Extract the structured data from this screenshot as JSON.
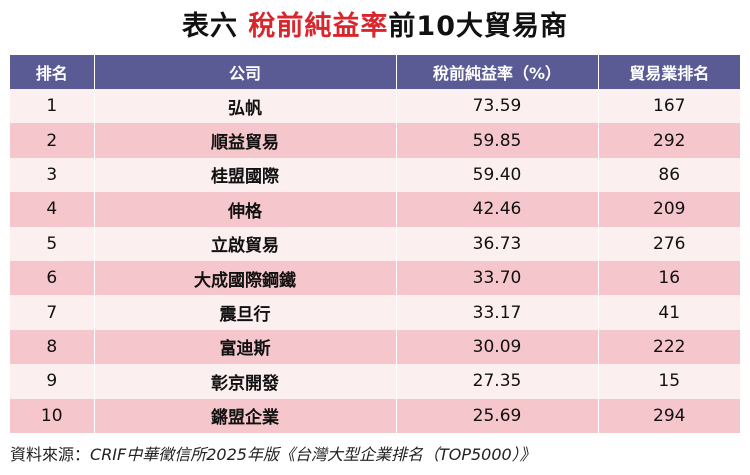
{
  "title": {
    "prefix": "表六",
    "highlight": "稅前純益率",
    "suffix": "前10大貿易商"
  },
  "table": {
    "headers": [
      "排名",
      "公司",
      "稅前純益率（%）",
      "貿易業排名"
    ],
    "rows": [
      [
        "1",
        "弘帆",
        "73.59",
        "167"
      ],
      [
        "2",
        "順益貿易",
        "59.85",
        "292"
      ],
      [
        "3",
        "桂盟國際",
        "59.40",
        "86"
      ],
      [
        "4",
        "伸格",
        "42.46",
        "209"
      ],
      [
        "5",
        "立啟貿易",
        "36.73",
        "276"
      ],
      [
        "6",
        "大成國際鋼鐵",
        "33.70",
        "16"
      ],
      [
        "7",
        "震旦行",
        "33.17",
        "41"
      ],
      [
        "8",
        "富迪斯",
        "30.09",
        "222"
      ],
      [
        "9",
        "彰京開發",
        "27.35",
        "15"
      ],
      [
        "10",
        "鏘盟企業",
        "25.69",
        "294"
      ]
    ]
  },
  "source": {
    "label": "資料來源：",
    "text": "CRIF中華徵信所2025年版《台灣大型企業排名（TOP5000）》"
  },
  "colors": {
    "header": "#5a5b95",
    "row_light": "#fceff0",
    "row_dark": "#f5c6cb",
    "highlight": "#d8262c"
  }
}
